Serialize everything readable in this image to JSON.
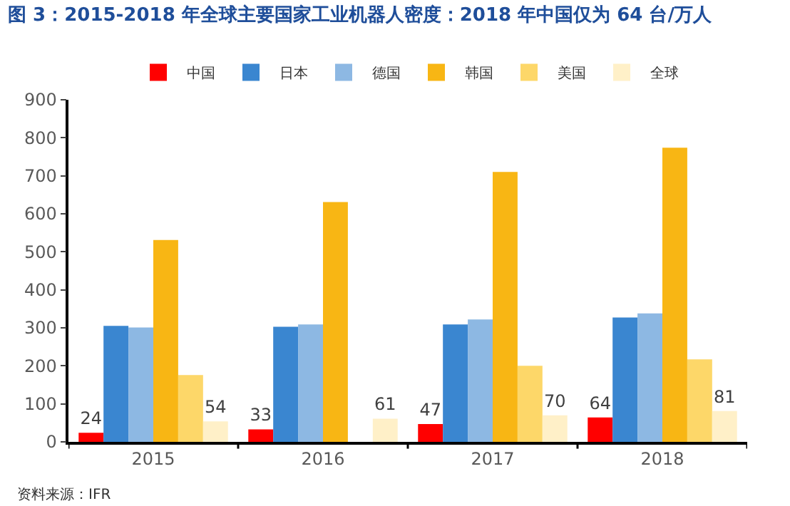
{
  "chart_data": {
    "type": "bar",
    "title": "图 3：2015-2018 年全球主要国家工业机器人密度：2018 年中国仅为 64 台/万人",
    "categories": [
      "2015",
      "2016",
      "2017",
      "2018"
    ],
    "series": [
      {
        "name": "中国",
        "color": "#ff0000",
        "values": [
          24,
          33,
          47,
          64
        ],
        "value_labels": [
          "24",
          "33",
          "47",
          "64"
        ]
      },
      {
        "name": "日本",
        "color": "#3a86d0",
        "values": [
          305,
          303,
          309,
          327
        ]
      },
      {
        "name": "德国",
        "color": "#8db8e3",
        "values": [
          301,
          309,
          322,
          338
        ]
      },
      {
        "name": "韩国",
        "color": "#f8b614",
        "values": [
          531,
          631,
          710,
          774
        ]
      },
      {
        "name": "美国",
        "color": "#fdd769",
        "values": [
          176,
          null,
          200,
          217
        ]
      },
      {
        "name": "全球",
        "color": "#fff0c8",
        "values": [
          54,
          61,
          70,
          81
        ],
        "value_labels": [
          "54",
          "61",
          "70",
          "81"
        ]
      }
    ],
    "ylim": [
      0,
      900
    ],
    "yticks": [
      0,
      100,
      200,
      300,
      400,
      500,
      600,
      700,
      800,
      900
    ],
    "grid": false,
    "legend": "top",
    "annotations": [
      "资料来源：IFR"
    ]
  }
}
